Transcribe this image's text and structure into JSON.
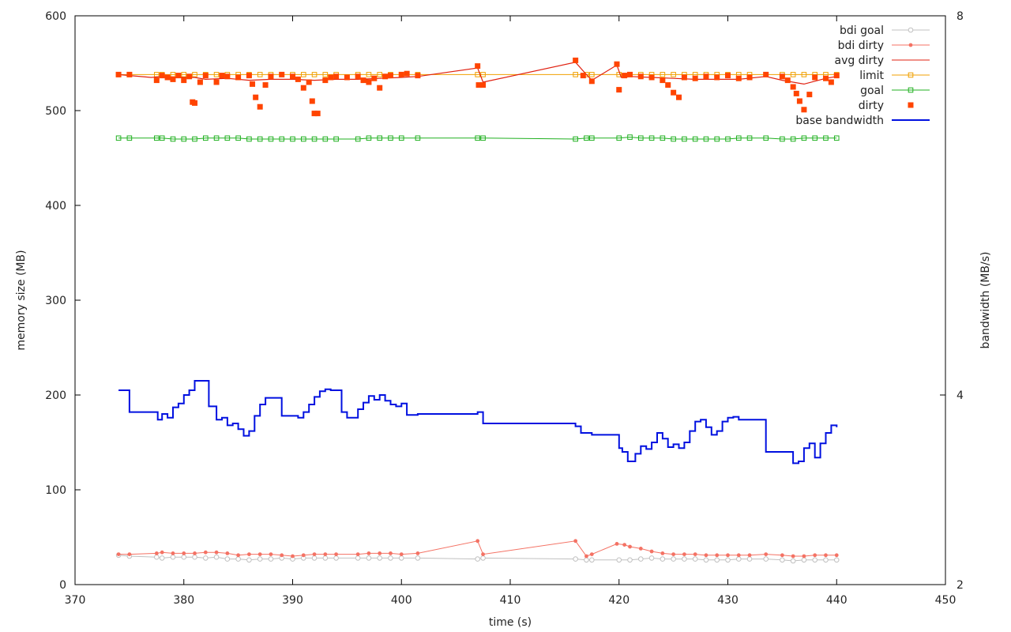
{
  "chart_data": {
    "type": "line",
    "title": "",
    "xlabel": "time (s)",
    "ylabel": "memory size (MB)",
    "y2label": "bandwidth (MB/s)",
    "xlim": [
      370,
      450
    ],
    "ylim": [
      0,
      600
    ],
    "y2lim": [
      2,
      8
    ],
    "xticks": [
      370,
      380,
      390,
      400,
      410,
      420,
      430,
      440,
      450
    ],
    "yticks": [
      0,
      100,
      200,
      300,
      400,
      500,
      600
    ],
    "y2ticks": [
      2,
      4,
      8
    ],
    "grid": false,
    "legend_position": "top-right",
    "legend": [
      {
        "label": "bdi goal",
        "series": "bdi_goal"
      },
      {
        "label": "bdi dirty",
        "series": "bdi_dirty"
      },
      {
        "label": "avg dirty",
        "series": "avg_dirty"
      },
      {
        "label": "limit",
        "series": "limit"
      },
      {
        "label": "goal",
        "series": "goal"
      },
      {
        "label": "dirty",
        "series": "dirty"
      },
      {
        "label": "base bandwidth",
        "series": "base_bandwidth"
      }
    ],
    "series": [
      {
        "id": "bdi_goal",
        "name": "bdi goal",
        "color": "#c0c0c0",
        "marker": "open-circle",
        "axis": "y",
        "x": [
          374,
          375,
          377.5,
          378,
          379,
          380,
          381,
          382,
          383,
          384,
          385,
          386,
          387,
          388,
          389,
          390,
          391,
          392,
          393,
          394,
          396,
          397,
          398,
          399,
          400,
          401.5,
          407,
          407.5,
          416,
          417,
          417.5,
          420,
          421,
          422,
          423,
          424,
          425,
          426,
          427,
          428,
          429,
          430,
          431,
          432,
          433.5,
          435,
          436,
          437,
          438,
          439,
          440
        ],
        "y": [
          31,
          30,
          29,
          28,
          29,
          29,
          29,
          28,
          29,
          27,
          27,
          26,
          27,
          27,
          28,
          27,
          28,
          28,
          28,
          28,
          28,
          28,
          28,
          28,
          28,
          28,
          27,
          28,
          27,
          26,
          26,
          26,
          26,
          27,
          28,
          27,
          27,
          27,
          27,
          26,
          26,
          26,
          27,
          27,
          27,
          26,
          25,
          26,
          26,
          26,
          26
        ]
      },
      {
        "id": "bdi_dirty",
        "name": "bdi dirty",
        "color": "#f47264",
        "marker": "dot",
        "axis": "y",
        "x": [
          374,
          375,
          377.5,
          378,
          379,
          380,
          381,
          382,
          383,
          384,
          385,
          386,
          387,
          388,
          389,
          390,
          391,
          392,
          393,
          394,
          396,
          397,
          398,
          399,
          400,
          401.5,
          407,
          407.5,
          416,
          417,
          417.5,
          419.8,
          420.5,
          421,
          422,
          423,
          424,
          425,
          426,
          427,
          428,
          429,
          430,
          431,
          432,
          433.5,
          435,
          436,
          437,
          438,
          439,
          440
        ],
        "y": [
          32,
          32,
          33,
          34,
          33,
          33,
          33,
          34,
          34,
          33,
          31,
          32,
          32,
          32,
          31,
          30,
          31,
          32,
          32,
          32,
          32,
          33,
          33,
          33,
          32,
          33,
          46,
          32,
          46,
          30,
          32,
          43,
          42,
          40,
          38,
          35,
          33,
          32,
          32,
          32,
          31,
          31,
          31,
          31,
          31,
          32,
          31,
          30,
          30,
          31,
          31,
          31
        ]
      },
      {
        "id": "avg_dirty",
        "name": "avg dirty",
        "color": "#e02010",
        "marker": "none",
        "axis": "y",
        "x": [
          374,
          375,
          377,
          378,
          380,
          381,
          382,
          384,
          386,
          388,
          390,
          392,
          394,
          396,
          398,
          400,
          401.5,
          407,
          407.5,
          416,
          417,
          417.5,
          419.8,
          420.2,
          421,
          423,
          425,
          427,
          429,
          431,
          433.5,
          435,
          437,
          439,
          440
        ],
        "y": [
          538,
          537,
          535,
          536,
          535,
          535,
          533,
          534,
          532,
          533,
          533,
          532,
          533,
          533,
          534,
          535,
          536,
          545,
          530,
          551,
          538,
          532,
          548,
          535,
          536,
          535,
          534,
          533,
          533,
          533,
          536,
          532,
          528,
          534,
          536
        ]
      },
      {
        "id": "limit",
        "name": "limit",
        "color": "#f0a000",
        "marker": "open-square",
        "axis": "y",
        "x": [
          374,
          375,
          377.5,
          378,
          379,
          380,
          381,
          382,
          383,
          384,
          385,
          386,
          387,
          388,
          389,
          390,
          391,
          392,
          393,
          394,
          396,
          397,
          398,
          399,
          400,
          401.5,
          407,
          407.5,
          416,
          417,
          417.5,
          420,
          421,
          422,
          423,
          424,
          425,
          426,
          427,
          428,
          429,
          430,
          431,
          432,
          433.5,
          435,
          436,
          437,
          438,
          439,
          440
        ],
        "y": [
          538,
          538,
          538,
          538,
          538,
          538,
          538,
          538,
          538,
          538,
          538,
          538,
          538,
          538,
          538,
          538,
          538,
          538,
          538,
          538,
          538,
          538,
          538,
          538,
          538,
          538,
          538,
          538,
          538,
          538,
          538,
          538,
          538,
          538,
          538,
          538,
          538,
          538,
          538,
          538,
          538,
          538,
          538,
          538,
          538,
          538,
          538,
          538,
          538,
          538,
          538
        ]
      },
      {
        "id": "goal",
        "name": "goal",
        "color": "#20b020",
        "marker": "open-square",
        "axis": "y",
        "x": [
          374,
          375,
          377.5,
          378,
          379,
          380,
          381,
          382,
          383,
          384,
          385,
          386,
          387,
          388,
          389,
          390,
          391,
          392,
          393,
          394,
          396,
          397,
          398,
          399,
          400,
          401.5,
          407,
          407.5,
          416,
          417,
          417.5,
          420,
          421,
          422,
          423,
          424,
          425,
          426,
          427,
          428,
          429,
          430,
          431,
          432,
          433.5,
          435,
          436,
          437,
          438,
          439,
          440
        ],
        "y": [
          471,
          471,
          471,
          471,
          470,
          470,
          470,
          471,
          471,
          471,
          471,
          470,
          470,
          470,
          470,
          470,
          470,
          470,
          470,
          470,
          470,
          471,
          471,
          471,
          471,
          471,
          471,
          471,
          470,
          471,
          471,
          471,
          472,
          471,
          471,
          471,
          470,
          470,
          470,
          470,
          470,
          470,
          471,
          471,
          471,
          470,
          470,
          471,
          471,
          471,
          471
        ]
      },
      {
        "id": "dirty",
        "name": "dirty",
        "color": "#ff4400",
        "marker": "filled-square",
        "axis": "y",
        "x": [
          374,
          375,
          377.5,
          378,
          378.5,
          379,
          379.5,
          380,
          380.5,
          380.8,
          381,
          381.5,
          382,
          383,
          383.5,
          384,
          385,
          386,
          386.3,
          386.6,
          387,
          387.5,
          388,
          389,
          390,
          390.5,
          391,
          391.5,
          391.8,
          392,
          392.3,
          393,
          393.5,
          394,
          395,
          396,
          396.5,
          397,
          397.5,
          398,
          398.5,
          399,
          400,
          400.5,
          401.5,
          407,
          407.1,
          407.5,
          416,
          416.7,
          417.5,
          419.8,
          420,
          420.5,
          421,
          422,
          423,
          424,
          424.5,
          425,
          425.5,
          426,
          427,
          428,
          429,
          430,
          431,
          432,
          433.5,
          435,
          435.5,
          436,
          436.3,
          436.6,
          437,
          437.5,
          438,
          439,
          439.5,
          440
        ],
        "y": [
          538,
          538,
          532,
          537,
          535,
          533,
          537,
          532,
          536,
          509,
          508,
          530,
          537,
          530,
          537,
          536,
          535,
          537,
          528,
          514,
          504,
          527,
          536,
          538,
          536,
          533,
          524,
          530,
          510,
          497,
          497,
          532,
          535,
          536,
          535,
          536,
          532,
          530,
          534,
          524,
          536,
          537,
          538,
          539,
          537,
          547,
          527,
          527,
          553,
          537,
          531,
          549,
          522,
          537,
          538,
          536,
          535,
          532,
          527,
          519,
          514,
          535,
          534,
          536,
          535,
          537,
          534,
          535,
          538,
          536,
          532,
          525,
          518,
          510,
          501,
          517,
          535,
          534,
          530,
          537
        ]
      },
      {
        "id": "base_bandwidth",
        "name": "base bandwidth",
        "color": "#0010e0",
        "marker": "none",
        "axis": "y2",
        "step": true,
        "x": [
          374,
          375,
          377.5,
          377.6,
          378,
          378.5,
          379,
          379.5,
          380,
          380.5,
          381,
          381.5,
          382.3,
          383,
          383.5,
          384,
          384.5,
          385,
          385.5,
          386,
          386.5,
          387,
          387.5,
          388,
          389,
          390,
          390.5,
          391,
          391.5,
          392,
          392.5,
          393,
          393.5,
          394.5,
          395,
          396,
          396.5,
          397,
          397.5,
          398,
          398.5,
          399,
          399.5,
          400,
          400.5,
          401.5,
          407,
          407.5,
          416,
          416.5,
          417.5,
          420,
          420.3,
          420.8,
          421.5,
          422,
          422.5,
          423,
          423.5,
          424,
          424.5,
          425,
          425.5,
          426,
          426.5,
          427,
          427.5,
          428,
          428.5,
          429,
          429.5,
          430,
          430.5,
          431,
          432,
          433.5,
          435,
          436,
          436.5,
          437,
          437.5,
          438,
          438.5,
          439,
          439.5,
          440
        ],
        "y": [
          4.05,
          3.82,
          3.82,
          3.74,
          3.8,
          3.76,
          3.87,
          3.91,
          4.0,
          4.05,
          4.15,
          4.15,
          3.88,
          3.74,
          3.76,
          3.68,
          3.7,
          3.64,
          3.57,
          3.62,
          3.78,
          3.9,
          3.97,
          3.97,
          3.78,
          3.78,
          3.76,
          3.82,
          3.9,
          3.98,
          4.04,
          4.06,
          4.05,
          3.82,
          3.76,
          3.85,
          3.92,
          3.99,
          3.95,
          4.0,
          3.94,
          3.9,
          3.88,
          3.91,
          3.79,
          3.8,
          3.82,
          3.7,
          3.67,
          3.6,
          3.58,
          3.44,
          3.4,
          3.3,
          3.38,
          3.46,
          3.43,
          3.5,
          3.6,
          3.54,
          3.45,
          3.48,
          3.44,
          3.5,
          3.62,
          3.72,
          3.74,
          3.66,
          3.58,
          3.62,
          3.72,
          3.76,
          3.77,
          3.74,
          3.74,
          3.4,
          3.4,
          3.28,
          3.3,
          3.44,
          3.49,
          3.34,
          3.49,
          3.6,
          3.68,
          3.66
        ]
      }
    ]
  }
}
